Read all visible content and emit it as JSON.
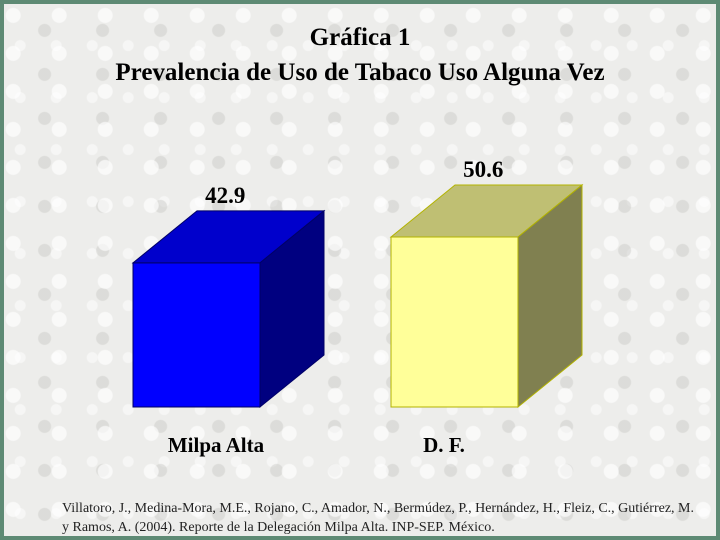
{
  "title_line1": "Gráfica 1",
  "title_line2": "Prevalencia de Uso de Tabaco Uso Alguna Vez",
  "chart_data": {
    "type": "bar",
    "categories": [
      "Milpa Alta",
      "D. F."
    ],
    "values": [
      42.9,
      50.6
    ],
    "data_labels": [
      "42.9",
      "50.6"
    ],
    "colors": [
      {
        "front": "#0000ff",
        "top": "#0000cc",
        "side": "#000080"
      },
      {
        "front": "#ffff99",
        "top": "#bfbf73",
        "side": "#808050"
      }
    ],
    "title": "Prevalencia de Uso de Tabaco Uso Alguna Vez",
    "xlabel": "",
    "ylabel": "",
    "grid": false,
    "legend": "none"
  },
  "source_text": "Villatoro, J., Medina-Mora, M.E., Rojano, C., Amador, N., Bermúdez, P., Hernández, H., Fleiz, C., Gutiérrez, M. y Ramos, A. (2004). Reporte de la Delegación Milpa Alta. INP-SEP. México."
}
